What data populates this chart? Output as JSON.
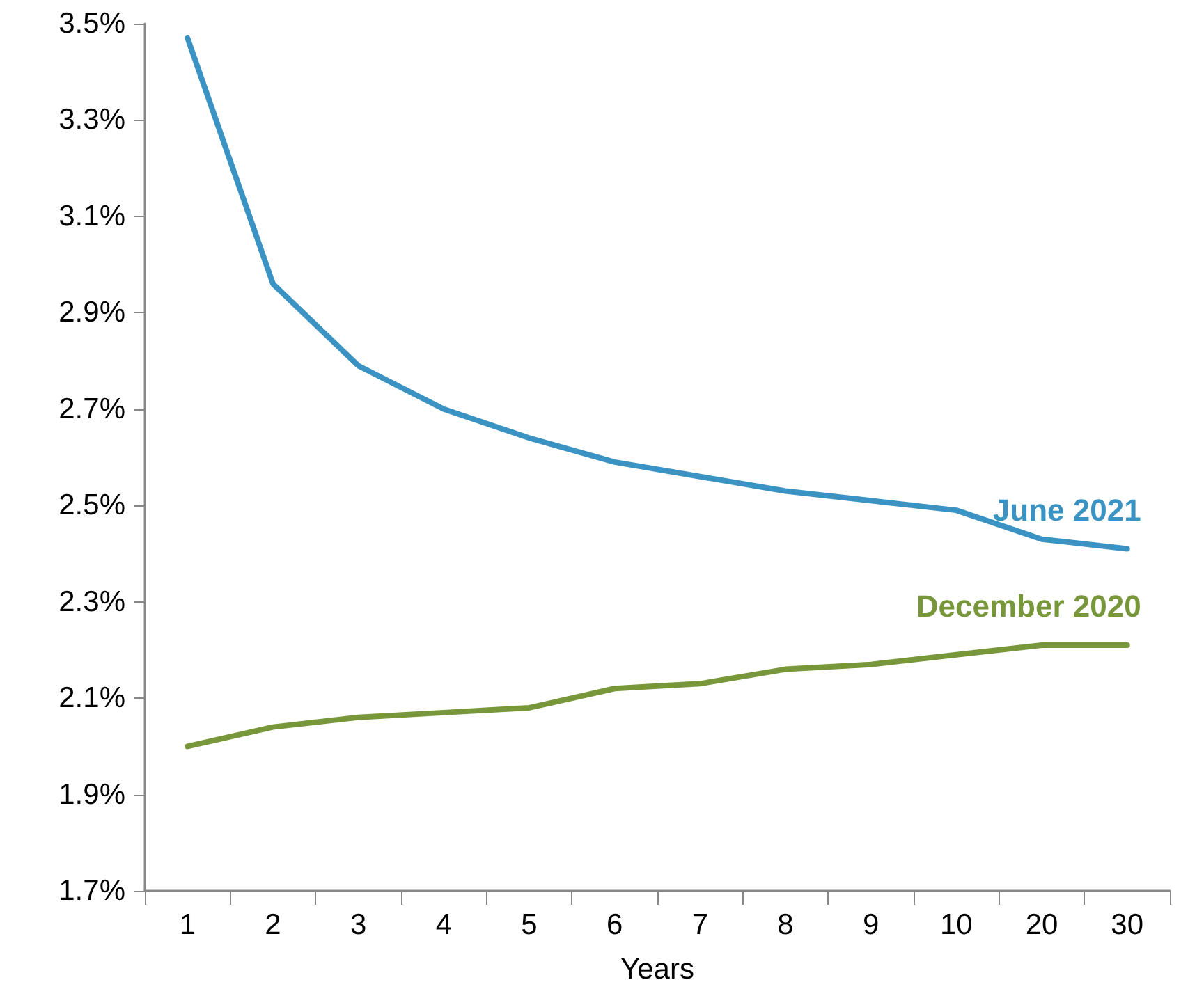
{
  "chart_data": {
    "type": "line",
    "xlabel": "Years",
    "categories": [
      "1",
      "2",
      "3",
      "4",
      "5",
      "6",
      "7",
      "8",
      "9",
      "10",
      "20",
      "30"
    ],
    "series": [
      {
        "name": "June 2021",
        "color": "#3a93c3",
        "values": [
          3.47,
          2.96,
          2.79,
          2.7,
          2.64,
          2.59,
          2.56,
          2.53,
          2.51,
          2.49,
          2.43,
          2.41
        ]
      },
      {
        "name": "December 2020",
        "color": "#77973a",
        "values": [
          2.0,
          2.04,
          2.06,
          2.07,
          2.08,
          2.12,
          2.13,
          2.16,
          2.17,
          2.19,
          2.21,
          2.21
        ]
      }
    ],
    "ylim": [
      1.7,
      3.5
    ],
    "yticks": [
      {
        "value": 1.7,
        "label": "1.7%"
      },
      {
        "value": 1.9,
        "label": "1.9%"
      },
      {
        "value": 2.1,
        "label": "2.1%"
      },
      {
        "value": 2.3,
        "label": "2.3%"
      },
      {
        "value": 2.5,
        "label": "2.5%"
      },
      {
        "value": 2.7,
        "label": "2.7%"
      },
      {
        "value": 2.9,
        "label": "2.9%"
      },
      {
        "value": 3.1,
        "label": "3.1%"
      },
      {
        "value": 3.3,
        "label": "3.3%"
      },
      {
        "value": 3.5,
        "label": "3.5%"
      }
    ],
    "grid": false,
    "legend": false,
    "marker": "none",
    "line_style": "solid"
  }
}
